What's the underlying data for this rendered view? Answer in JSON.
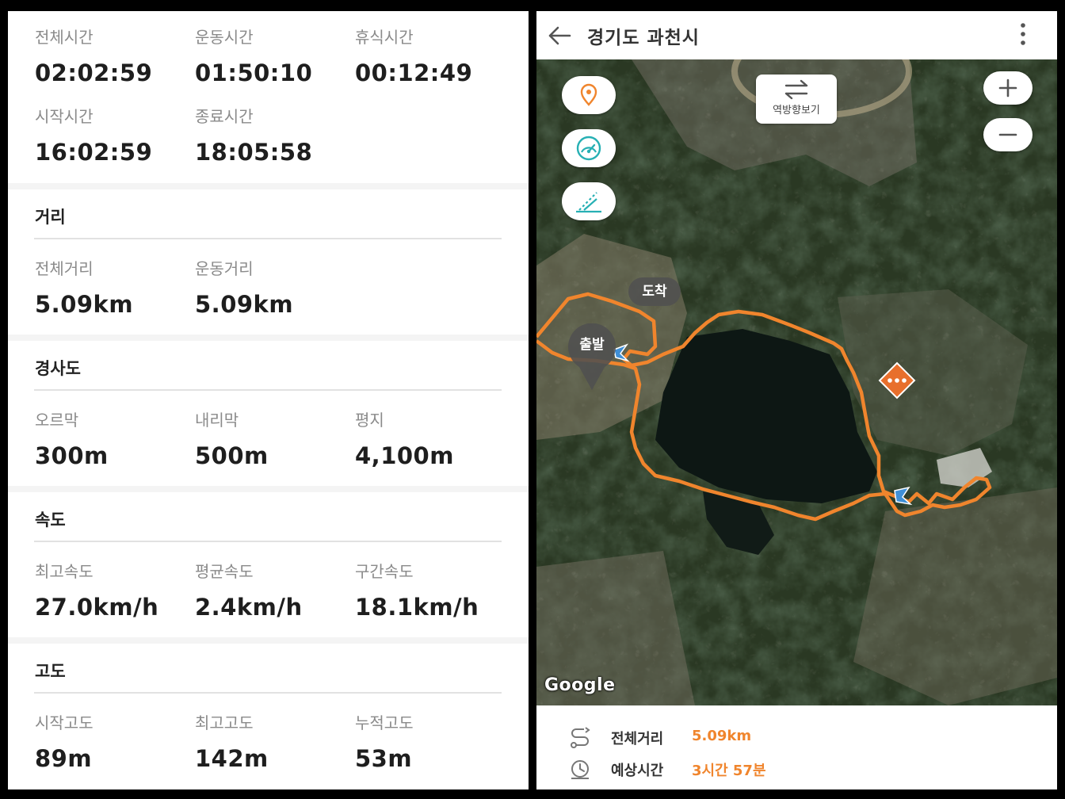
{
  "record": {
    "time": {
      "total_label": "전체시간",
      "total_value": "02:02:59",
      "moving_label": "운동시간",
      "moving_value": "01:50:10",
      "rest_label": "휴식시간",
      "rest_value": "00:12:49",
      "start_label": "시작시간",
      "start_value": "16:02:59",
      "end_label": "종료시간",
      "end_value": "18:05:58"
    },
    "distance": {
      "title": "거리",
      "total_label": "전체거리",
      "total_value": "5.09km",
      "moving_label": "운동거리",
      "moving_value": "5.09km"
    },
    "slope": {
      "title": "경사도",
      "uphill_label": "오르막",
      "uphill_value": "300m",
      "downhill_label": "내리막",
      "downhill_value": "500m",
      "flat_label": "평지",
      "flat_value": "4,100m"
    },
    "speed": {
      "title": "속도",
      "max_label": "최고속도",
      "max_value": "27.0km/h",
      "avg_label": "평균속도",
      "avg_value": "2.4km/h",
      "section_label": "구간속도",
      "section_value": "18.1km/h"
    },
    "altitude": {
      "title": "고도",
      "start_label": "시작고도",
      "start_value": "89m",
      "max_label": "최고고도",
      "max_value": "142m",
      "cumulative_label": "누적고도",
      "cumulative_value": "53m"
    }
  },
  "map_view": {
    "title": "경기도 과천시",
    "back_icon": "arrow-left-icon",
    "menu_icon": "kebab-menu-icon",
    "reverse_label": "역방향보기",
    "start_marker": "출발",
    "finish_marker": "도착",
    "attribution": "Google",
    "accent_color": "#f0852d",
    "summary": {
      "distance_label": "전체거리",
      "distance_value": "5.09km",
      "eta_label": "예상시간",
      "eta_value": "3시간 57분"
    }
  }
}
